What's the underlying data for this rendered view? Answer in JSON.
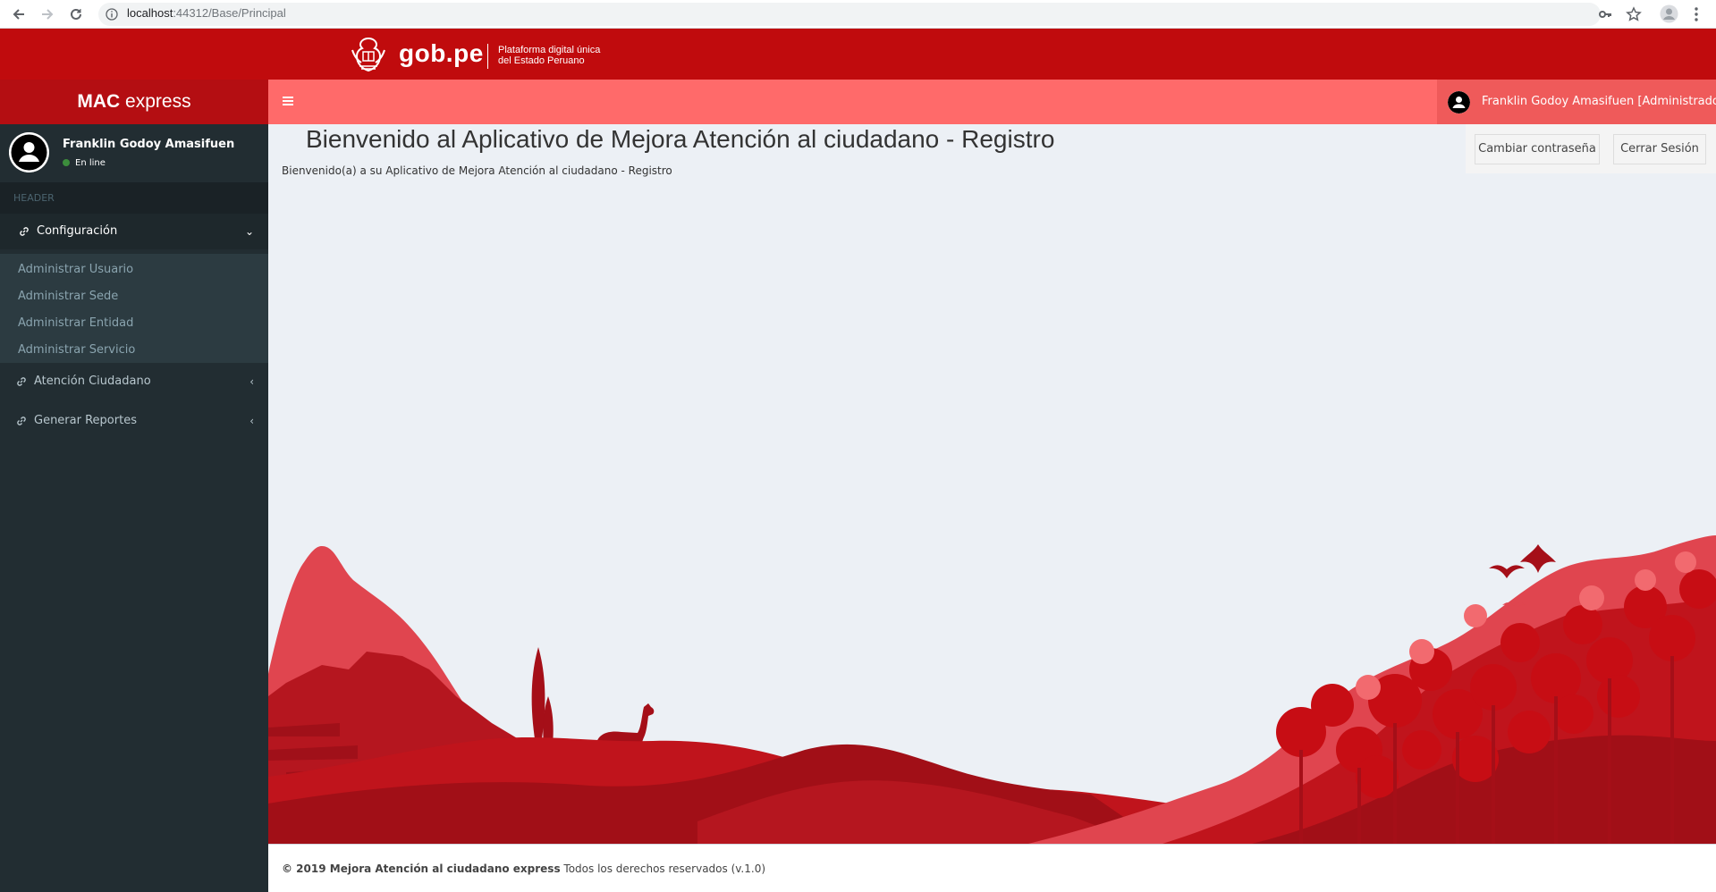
{
  "browser": {
    "url_host": "localhost",
    "url_rest": ":44312/Base/Principal"
  },
  "gov": {
    "brand": "gob.pe",
    "subtitle_line1": "Plataforma digital única",
    "subtitle_line2": "del Estado Peruano",
    "color": "#c00b0d"
  },
  "sidebar": {
    "brand_bold": "MAC",
    "brand_rest": " express",
    "user_name": "Franklin Godoy Amasifuen",
    "user_status": "En line",
    "header_label": "HEADER",
    "menu": [
      {
        "label": "Configuración",
        "icon": "link-icon",
        "expanded": true
      },
      {
        "label": "Atención Ciudadano",
        "icon": "link-icon",
        "expanded": false
      },
      {
        "label": "Generar Reportes",
        "icon": "link-icon",
        "expanded": false
      }
    ],
    "submenu": [
      {
        "label": "Administrar Usuario"
      },
      {
        "label": "Administrar Sede"
      },
      {
        "label": "Administrar Entidad"
      },
      {
        "label": "Administrar Servicio"
      }
    ]
  },
  "topnav": {
    "user_label": "Franklin Godoy Amasifuen [Administrador]",
    "color": "#ff6a6a"
  },
  "main": {
    "title": "Bienvenido al Aplicativo de Mejora Atención al ciudadano - Registro",
    "description": "Bienvenido(a) a su Aplicativo de Mejora Atención al ciudadano - Registro",
    "change_password": "Cambiar contraseña",
    "logout": "Cerrar Sesión"
  },
  "footer": {
    "bold": "© 2019 Mejora Atención al ciudadano express",
    "rest": " Todos los derechos reservados (v.1.0)"
  }
}
